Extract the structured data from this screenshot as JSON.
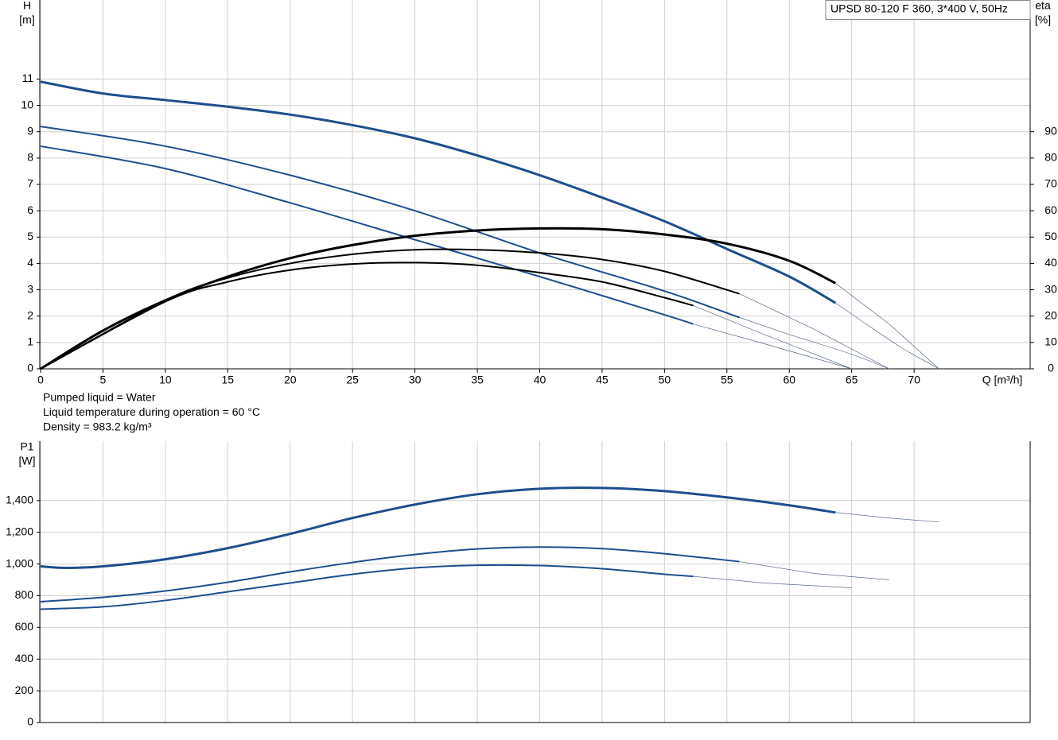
{
  "chart_data": [
    {
      "type": "line",
      "title": "UPSD 80-120 F 360, 3*400 V, 50Hz",
      "y_label": [
        "H",
        "[m]"
      ],
      "y2_label": [
        "eta",
        "[%]"
      ],
      "x_label": "Q [m³/h]",
      "notes": [
        "Pumped liquid = Water",
        "Liquid temperature during operation = 60 °C",
        "Density = 983.2 kg/m³"
      ],
      "xlim": [
        0,
        79.3
      ],
      "xticks": [
        0,
        5,
        10,
        15,
        20,
        25,
        30,
        35,
        40,
        45,
        50,
        55,
        60,
        65,
        70
      ],
      "ylim": [
        0,
        14
      ],
      "yticks": [
        0,
        1,
        2,
        3,
        4,
        5,
        6,
        7,
        8,
        9,
        10,
        11
      ],
      "y2lim": [
        0,
        140
      ],
      "y2ticks": [
        0,
        10,
        20,
        30,
        40,
        50,
        60,
        70,
        80,
        90
      ],
      "grid": true,
      "series": [
        {
          "color": "#1f4e8c",
          "line_width": 3,
          "axis": "y",
          "x": [
            0,
            5,
            10,
            15,
            20,
            25,
            30,
            35,
            40,
            45,
            50,
            55,
            60,
            63.7
          ],
          "values": [
            10.9,
            10.45,
            10.2,
            9.95,
            9.65,
            9.25,
            8.75,
            8.1,
            7.35,
            6.5,
            5.6,
            4.55,
            3.5,
            2.5
          ]
        },
        {
          "color": "#5a6a8a",
          "line_width": 0.7,
          "axis": "y",
          "x": [
            66,
            69,
            72
          ],
          "values": [
            1.75,
            0.8,
            0
          ]
        },
        {
          "color": "#1f4e8c",
          "line_width": 2,
          "axis": "y",
          "x": [
            0,
            10,
            20,
            30,
            40,
            50,
            56
          ],
          "values": [
            9.2,
            8.45,
            7.35,
            6.0,
            4.4,
            2.95,
            1.95
          ]
        },
        {
          "color": "#5a6a8a",
          "line_width": 0.7,
          "axis": "y",
          "x": [
            60,
            65,
            68
          ],
          "values": [
            1.3,
            0.55,
            0
          ]
        },
        {
          "color": "#1f4e8c",
          "line_width": 2,
          "axis": "y",
          "x": [
            0,
            10,
            20,
            30,
            40,
            50,
            52.3
          ],
          "values": [
            8.45,
            7.6,
            6.3,
            4.9,
            3.5,
            2.05,
            1.7
          ]
        },
        {
          "color": "#5a6a8a",
          "line_width": 0.7,
          "axis": "y",
          "x": [
            58,
            65
          ],
          "values": [
            0.95,
            0
          ]
        },
        {
          "color": "#000000",
          "line_width": 3,
          "axis": "y2",
          "x": [
            0,
            5,
            10,
            15,
            20,
            25,
            30,
            35,
            40,
            45,
            50,
            55,
            60,
            63.7
          ],
          "values": [
            0,
            14.5,
            26,
            35,
            42,
            47,
            50.5,
            52.5,
            53.3,
            53,
            51,
            47.5,
            41,
            32.5
          ]
        },
        {
          "color": "#5a6a8a",
          "line_width": 0.7,
          "axis": "y2",
          "x": [
            68,
            72
          ],
          "values": [
            17,
            0
          ]
        },
        {
          "color": "#000000",
          "line_width": 2,
          "axis": "y2",
          "x": [
            0,
            10,
            15,
            20,
            25,
            30,
            35,
            40,
            45,
            50,
            56
          ],
          "values": [
            0,
            26,
            34.5,
            40,
            43.5,
            45.2,
            45.2,
            44,
            41.5,
            37,
            28.5
          ]
        },
        {
          "color": "#5a6a8a",
          "line_width": 0.7,
          "axis": "y2",
          "x": [
            62,
            68
          ],
          "values": [
            15,
            0
          ]
        },
        {
          "color": "#000000",
          "line_width": 2,
          "axis": "y2",
          "x": [
            0,
            10,
            15,
            20,
            25,
            30,
            35,
            40,
            45,
            50,
            52.3
          ],
          "values": [
            0,
            25.5,
            33,
            37.5,
            39.8,
            40.3,
            39.3,
            36.5,
            33,
            27,
            24
          ]
        },
        {
          "color": "#5a6a8a",
          "line_width": 0.7,
          "axis": "y2",
          "x": [
            58,
            65
          ],
          "values": [
            13,
            0
          ]
        }
      ]
    },
    {
      "type": "line",
      "y_label": [
        "P1",
        "[W]"
      ],
      "xlim": [
        0,
        79.3
      ],
      "xticks": [
        0,
        5,
        10,
        15,
        20,
        25,
        30,
        35,
        40,
        45,
        50,
        55,
        60,
        65,
        70
      ],
      "ylim": [
        0,
        1775
      ],
      "yticks": [
        0,
        200,
        400,
        600,
        800,
        {
          "value": 1000,
          "label": "1,000"
        },
        {
          "value": 1200,
          "label": "1,200"
        },
        {
          "value": 1400,
          "label": "1,400"
        }
      ],
      "grid": true,
      "series": [
        {
          "color": "#1f4e8c",
          "line_width": 3,
          "axis": "y",
          "x": [
            0,
            2,
            5,
            10,
            15,
            20,
            25,
            30,
            35,
            40,
            45,
            50,
            55,
            60,
            63.7
          ],
          "values": [
            985,
            975,
            985,
            1030,
            1100,
            1190,
            1290,
            1375,
            1440,
            1475,
            1480,
            1460,
            1420,
            1370,
            1325
          ]
        },
        {
          "color": "#5a6a8a",
          "line_width": 0.7,
          "axis": "y",
          "x": [
            68,
            72
          ],
          "values": [
            1290,
            1265
          ]
        },
        {
          "color": "#1f4e8c",
          "line_width": 2,
          "axis": "y",
          "x": [
            0,
            5,
            10,
            15,
            20,
            25,
            30,
            35,
            40,
            45,
            50,
            56
          ],
          "values": [
            762,
            790,
            830,
            885,
            950,
            1010,
            1060,
            1095,
            1107,
            1097,
            1065,
            1015
          ]
        },
        {
          "color": "#5a6a8a",
          "line_width": 0.7,
          "axis": "y",
          "x": [
            62,
            68
          ],
          "values": [
            940,
            900
          ]
        },
        {
          "color": "#1f4e8c",
          "line_width": 2,
          "axis": "y",
          "x": [
            0,
            5,
            10,
            15,
            20,
            25,
            30,
            35,
            40,
            45,
            50,
            52.3
          ],
          "values": [
            715,
            730,
            770,
            825,
            880,
            935,
            975,
            992,
            990,
            970,
            935,
            922
          ]
        },
        {
          "color": "#5a6a8a",
          "line_width": 0.7,
          "axis": "y",
          "x": [
            58,
            65
          ],
          "values": [
            880,
            850
          ]
        }
      ]
    }
  ]
}
